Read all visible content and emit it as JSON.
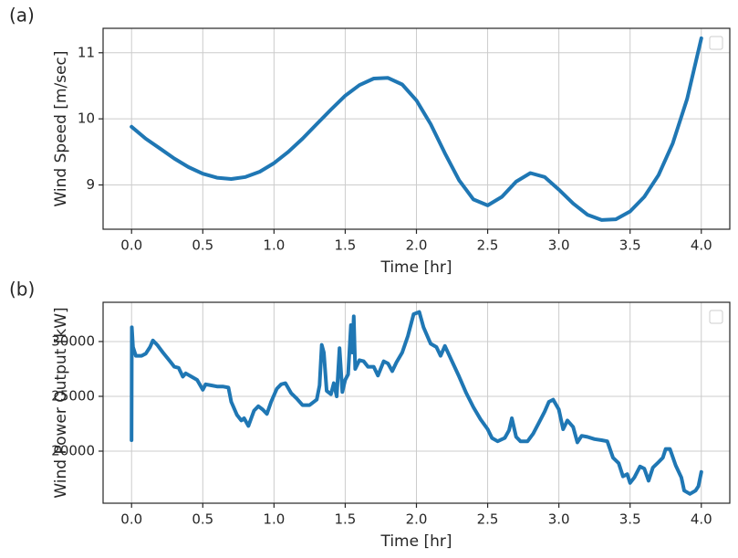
{
  "chart_data": [
    {
      "type": "line",
      "panel_label": "(a)",
      "xlabel": "Time [hr]",
      "ylabel": "Wind Speed [m/sec]",
      "color": "#1f77b4",
      "grid": true,
      "legend": "upper right",
      "xlim": [
        -0.2,
        4.2
      ],
      "ylim": [
        8.33,
        11.37
      ],
      "xticks": [
        {
          "value": 0,
          "label": "0.0"
        },
        0.5,
        {
          "value": 1,
          "label": "1.0"
        },
        1.5,
        {
          "value": 2,
          "label": "2.0"
        },
        2.5,
        {
          "value": 3,
          "label": "3.0"
        },
        3.5,
        {
          "value": 4,
          "label": "4.0"
        }
      ],
      "yticks": [
        9,
        10,
        11
      ],
      "x": [
        0,
        0.1,
        0.2,
        0.3,
        0.4,
        0.5,
        0.6,
        0.7,
        0.8,
        0.9,
        1,
        1.1,
        1.2,
        1.3,
        1.4,
        1.5,
        1.6,
        1.7,
        1.8,
        1.9,
        2,
        2.1,
        2.2,
        2.3,
        2.4,
        2.5,
        2.6,
        2.7,
        2.8,
        2.9,
        3,
        3.1,
        3.2,
        3.3,
        3.4,
        3.5,
        3.6,
        3.7,
        3.8,
        3.9,
        4
      ],
      "values": [
        9.88,
        9.7,
        9.55,
        9.4,
        9.27,
        9.17,
        9.11,
        9.09,
        9.12,
        9.2,
        9.33,
        9.5,
        9.7,
        9.92,
        10.14,
        10.35,
        10.51,
        10.61,
        10.62,
        10.52,
        10.28,
        9.92,
        9.48,
        9.07,
        8.78,
        8.69,
        8.82,
        9.05,
        9.18,
        9.12,
        8.93,
        8.72,
        8.55,
        8.47,
        8.48,
        8.6,
        8.82,
        9.15,
        9.63,
        10.3,
        11.22
      ]
    },
    {
      "type": "line",
      "panel_label": "(b)",
      "xlabel": "Time [hr]",
      "ylabel": "Wind Power Output [kW]",
      "color": "#1f77b4",
      "grid": true,
      "legend": "upper right",
      "xlim": [
        -0.2,
        4.2
      ],
      "ylim": [
        15250,
        33580
      ],
      "xticks": [
        {
          "value": 0,
          "label": "0.0"
        },
        0.5,
        {
          "value": 1,
          "label": "1.0"
        },
        1.5,
        {
          "value": 2,
          "label": "2.0"
        },
        2.5,
        {
          "value": 3,
          "label": "3.0"
        },
        3.5,
        {
          "value": 4,
          "label": "4.0"
        }
      ],
      "yticks": [
        20000,
        25000,
        30000
      ],
      "x": [
        0,
        0.002,
        0.01,
        0.03,
        0.07,
        0.1,
        0.13,
        0.15,
        0.18,
        0.22,
        0.27,
        0.3,
        0.33,
        0.36,
        0.38,
        0.42,
        0.46,
        0.5,
        0.52,
        0.56,
        0.6,
        0.64,
        0.68,
        0.7,
        0.74,
        0.77,
        0.79,
        0.82,
        0.86,
        0.89,
        0.92,
        0.95,
        0.98,
        1.02,
        1.05,
        1.08,
        1.12,
        1.16,
        1.2,
        1.25,
        1.3,
        1.32,
        1.335,
        1.35,
        1.37,
        1.4,
        1.42,
        1.44,
        1.46,
        1.48,
        1.5,
        1.52,
        1.54,
        1.55,
        1.56,
        1.57,
        1.6,
        1.63,
        1.66,
        1.7,
        1.73,
        1.77,
        1.8,
        1.83,
        1.86,
        1.9,
        1.94,
        1.98,
        2.02,
        2.05,
        2.1,
        2.14,
        2.17,
        2.2,
        2.25,
        2.3,
        2.35,
        2.4,
        2.45,
        2.5,
        2.53,
        2.57,
        2.62,
        2.65,
        2.67,
        2.7,
        2.73,
        2.78,
        2.82,
        2.86,
        2.9,
        2.93,
        2.96,
        3,
        3.03,
        3.06,
        3.1,
        3.13,
        3.16,
        3.2,
        3.25,
        3.3,
        3.34,
        3.38,
        3.42,
        3.45,
        3.48,
        3.5,
        3.53,
        3.57,
        3.6,
        3.63,
        3.66,
        3.7,
        3.73,
        3.75,
        3.78,
        3.82,
        3.86,
        3.88,
        3.92,
        3.96,
        3.98,
        4
      ],
      "values": [
        21000,
        31300,
        29500,
        28700,
        28700,
        28900,
        29500,
        30100,
        29700,
        29000,
        28200,
        27700,
        27600,
        26800,
        27100,
        26800,
        26500,
        25600,
        26100,
        26000,
        25900,
        25900,
        25800,
        24500,
        23300,
        22800,
        23000,
        22300,
        23700,
        24100,
        23800,
        23400,
        24500,
        25700,
        26100,
        26200,
        25300,
        24800,
        24200,
        24200,
        24700,
        26000,
        29700,
        29000,
        25500,
        25200,
        26200,
        25000,
        29400,
        25400,
        26500,
        27000,
        31500,
        29000,
        32300,
        27500,
        28300,
        28200,
        27700,
        27700,
        26900,
        28200,
        28000,
        27300,
        28100,
        29000,
        30500,
        32500,
        32700,
        31300,
        29800,
        29500,
        28700,
        29600,
        28200,
        26800,
        25300,
        24000,
        22900,
        22000,
        21200,
        20900,
        21200,
        21900,
        23000,
        21300,
        20900,
        20900,
        21600,
        22600,
        23600,
        24500,
        24700,
        23800,
        22000,
        22800,
        22200,
        20800,
        21400,
        21300,
        21100,
        21000,
        20900,
        19400,
        18900,
        17700,
        17900,
        17100,
        17600,
        18600,
        18400,
        17300,
        18500,
        19000,
        19400,
        20200,
        20200,
        18700,
        17600,
        16400,
        16100,
        16400,
        16800,
        18100
      ]
    }
  ]
}
